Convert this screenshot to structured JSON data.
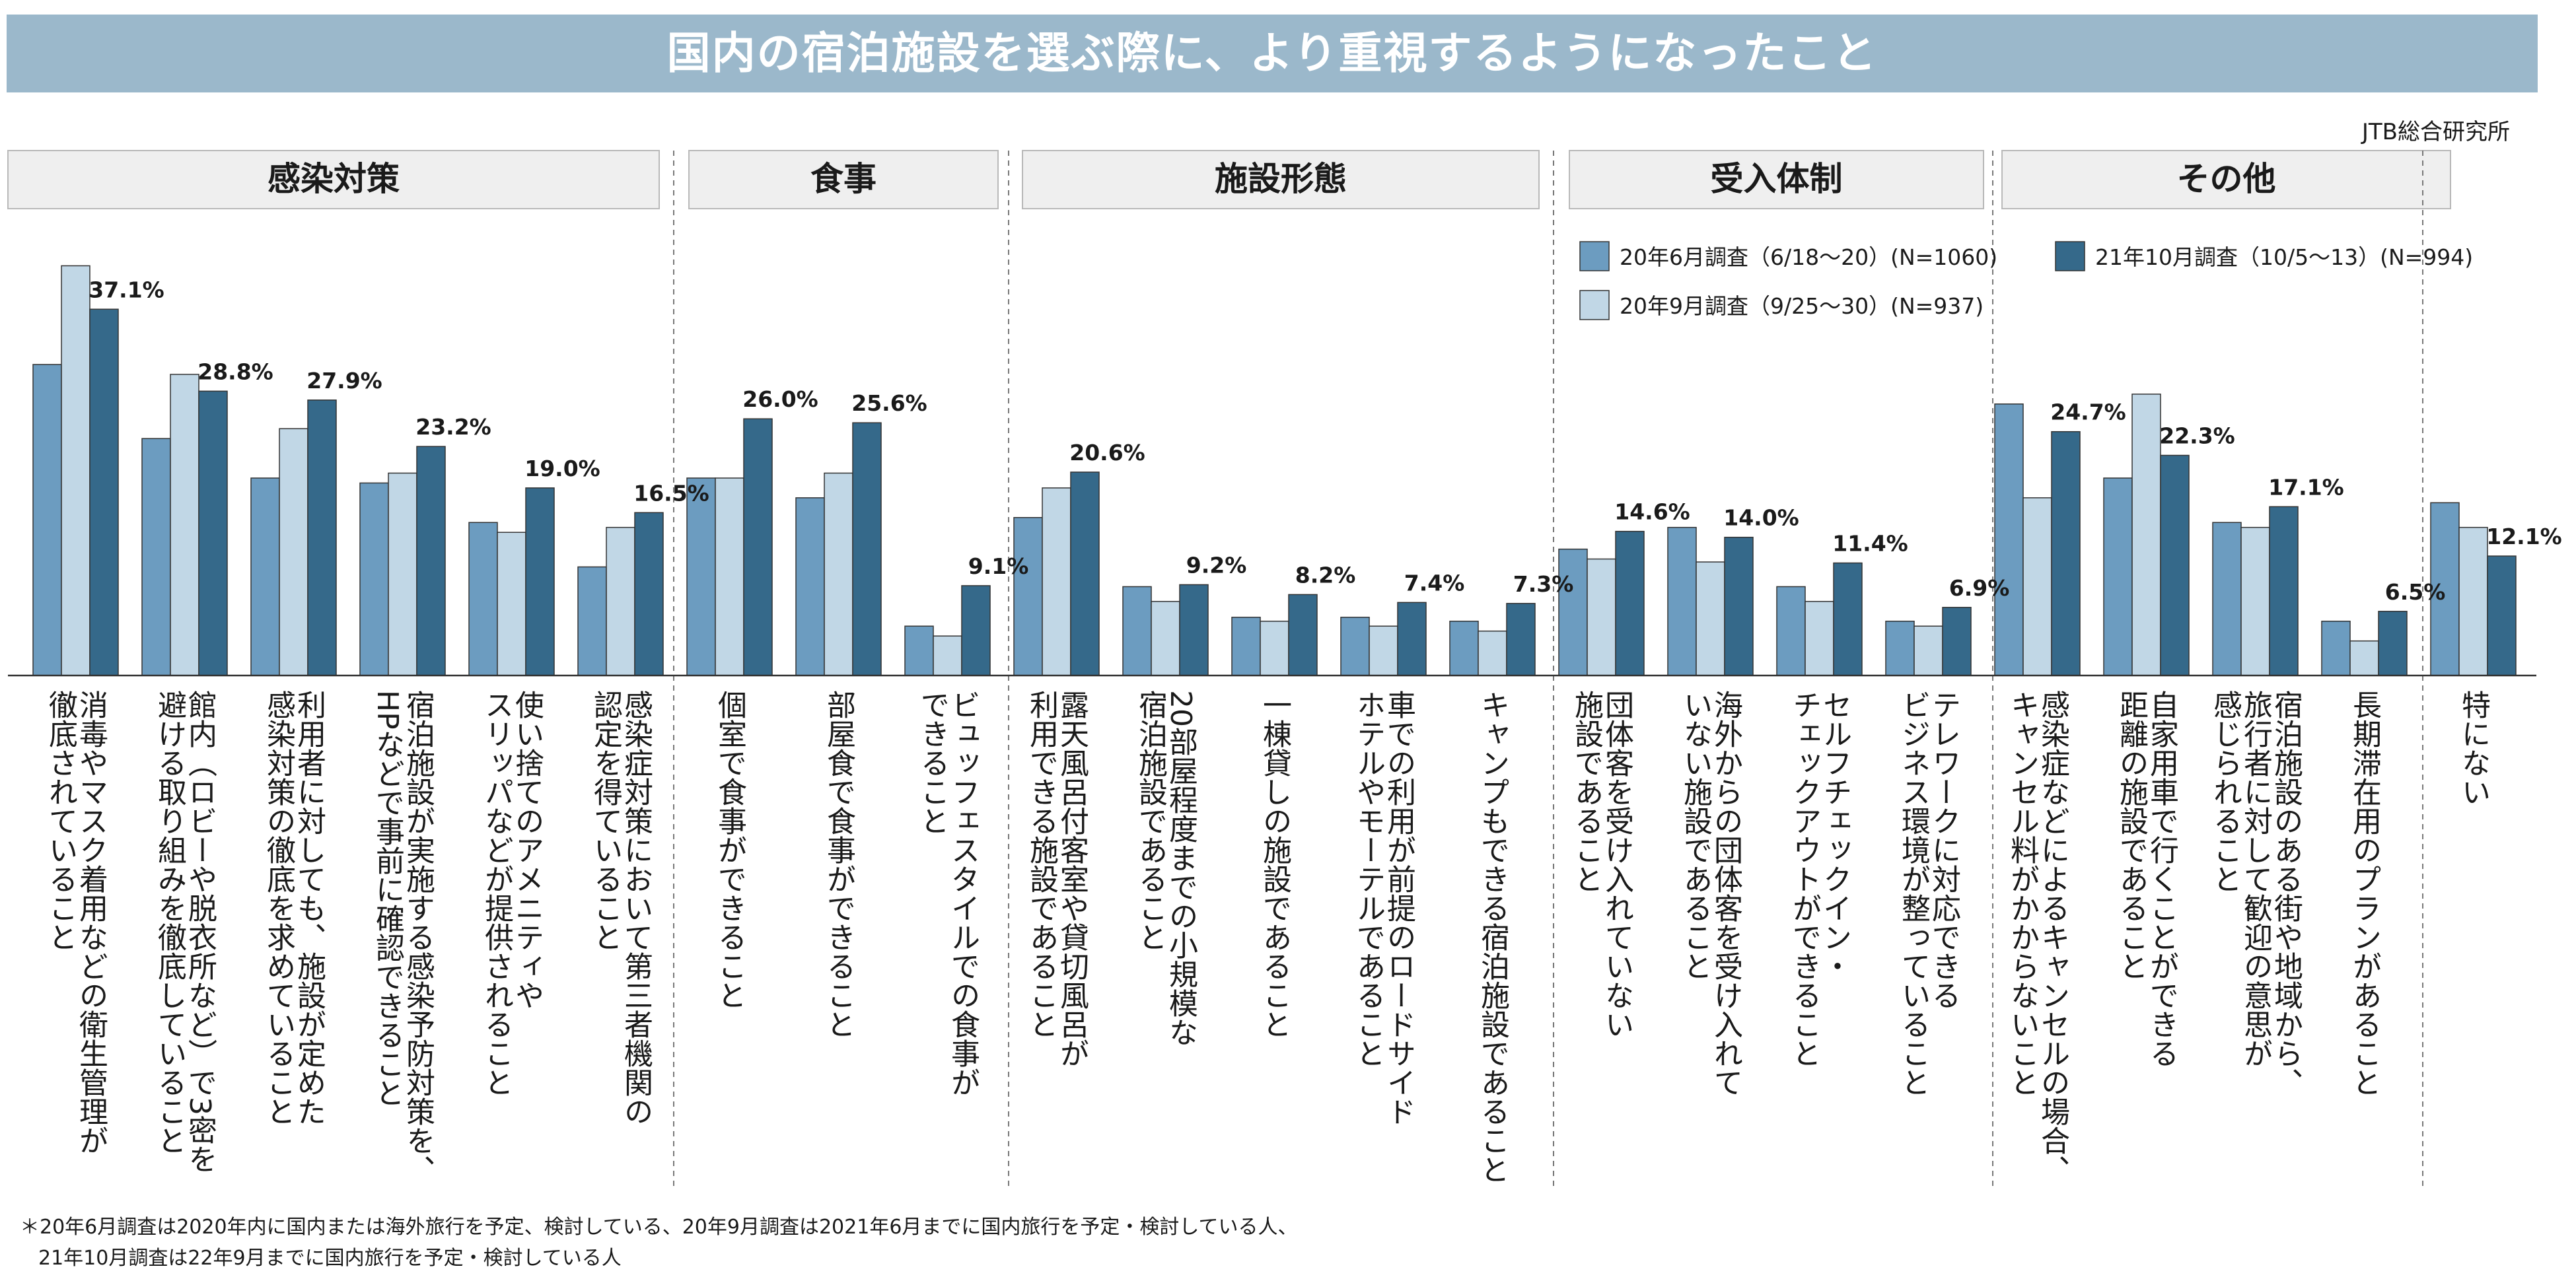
{
  "title": "国内の宿泊施設を選ぶ際に、より重視するようになったこと",
  "source": "JTB総合研究所",
  "footnote_line1": "＊20年6月調査は2020年内に国内または海外旅行を予定、検討している、20年9月調査は2021年6月までに国内旅行を予定・検討している人、",
  "footnote_line2": "21年10月調査は22年9月までに国内旅行を予定・検討している人",
  "colors": {
    "jun": "#6c9cc0",
    "sep": "#c1d7e6",
    "oct": "#35698a",
    "header_bg": "#efefef",
    "header_border": "#b9b9b9"
  },
  "chart_data": {
    "type": "bar",
    "title": "国内の宿泊施設を選ぶ際に、より重視するようになったこと",
    "ylim": [
      0,
      42
    ],
    "grid": false,
    "legend_position": "top-right",
    "series": [
      {
        "name": "20年6月調査（6/18～20）(N=1060)",
        "key": "jun",
        "values": [
          31.5,
          24.0,
          20.0,
          19.5,
          15.5,
          11.0,
          20.0,
          18.0,
          5.0,
          16.0,
          9.0,
          5.9,
          5.9,
          5.5,
          12.8,
          15.0,
          9.0,
          5.5,
          27.5,
          20.0,
          15.5,
          5.5,
          17.5
        ]
      },
      {
        "name": "20年9月調査（9/25～30）(N=937)",
        "key": "sep",
        "values": [
          41.5,
          30.5,
          25.0,
          20.5,
          14.5,
          15.0,
          20.0,
          20.5,
          4.0,
          19.0,
          7.5,
          5.5,
          5.0,
          4.5,
          11.8,
          11.5,
          7.5,
          5.0,
          18.0,
          28.5,
          15.0,
          3.5,
          15.0
        ]
      },
      {
        "name": "21年10月調査（10/5～13）(N=994)",
        "key": "oct",
        "values": [
          37.1,
          28.8,
          27.9,
          23.2,
          19.0,
          16.5,
          26.0,
          25.6,
          9.1,
          20.6,
          9.2,
          8.2,
          7.4,
          7.3,
          14.6,
          14.0,
          11.4,
          6.9,
          24.7,
          22.3,
          17.1,
          6.5,
          12.1
        ]
      }
    ],
    "data_labels": [
      "37.1%",
      "28.8%",
      "27.9%",
      "23.2%",
      "19.0%",
      "16.5%",
      "26.0%",
      "25.6%",
      "9.1%",
      "20.6%",
      "9.2%",
      "8.2%",
      "7.4%",
      "7.3%",
      "14.6%",
      "14.0%",
      "11.4%",
      "6.9%",
      "24.7%",
      "22.3%",
      "17.1%",
      "6.5%",
      "12.1%"
    ],
    "categories": [
      "消毒やマスク着用などの衛生管理が\n徹底されていること",
      "館内（ロビーや脱衣所など）で3密を\n避ける取り組みを徹底していること",
      "利用者に対しても、施設が定めた\n感染対策の徹底を求めていること",
      "宿泊施設が実施する感染予防対策を、\nHPなどで事前に確認できること",
      "使い捨てのアメニティや\nスリッパなどが提供されること",
      "感染症対策において第三者機関の\n認定を得ていること",
      "個室で食事ができること",
      "部屋食で食事ができること",
      "ビュッフェスタイルでの食事が\nできること",
      "露天風呂付客室や貸切風呂が\n利用できる施設であること",
      "20部屋程度までの小規模な\n宿泊施設であること",
      "一棟貸しの施設であること",
      "車での利用が前提のロードサイド\nホテルやモーテルであること",
      "キャンプもできる宿泊施設であること",
      "団体客を受け入れていない\n施設であること",
      "海外からの団体客を受け入れて\nいない施設であること",
      "セルフチェックイン・\nチェックアウトができること",
      "テレワークに対応できる\nビジネス環境が整っていること",
      "感染症などによるキャンセルの場合、\nキャンセル料がかからないこと",
      "自家用車で行くことができる\n距離の施設であること",
      "宿泊施設のある街や地域から、\n旅行者に対して歓迎の意思が\n感じられること",
      "長期滞在用のプランがあること",
      "特にない"
    ],
    "groups": [
      {
        "label": "感染対策",
        "start": 0,
        "end": 5
      },
      {
        "label": "食事",
        "start": 6,
        "end": 8
      },
      {
        "label": "施設形態",
        "start": 9,
        "end": 13
      },
      {
        "label": "受入体制",
        "start": 14,
        "end": 17
      },
      {
        "label": "その他",
        "start": 18,
        "end": 22
      }
    ]
  }
}
